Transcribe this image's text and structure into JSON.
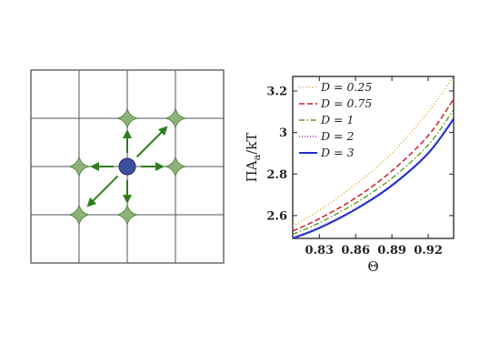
{
  "lattice_panel": {
    "grid_rows": 4,
    "grid_cols": 4,
    "grid_color": "#555555",
    "site_color": "#8fb27a",
    "site_edge_color": "#5d8a4a",
    "particle_color": "#3a4f9e",
    "arrow_color": "#2e7d1e"
  },
  "chart_data": {
    "type": "line",
    "xlabel": "Θ",
    "ylabel": "ΠA",
    "ylabel_subscript": "a",
    "ylabel_suffix": "/kT",
    "xlim": [
      0.808,
      0.941
    ],
    "ylim": [
      2.49,
      3.27
    ],
    "xticks": [
      0.83,
      0.86,
      0.89,
      0.92
    ],
    "yticks": [
      2.6,
      2.8,
      3,
      3.2
    ],
    "xtick_labels": [
      "0.83",
      "0.86",
      "0.89",
      "0.92"
    ],
    "ytick_labels": [
      "2.6",
      "2.8",
      "3",
      "3.2"
    ],
    "legend_position": "top-left",
    "series": [
      {
        "name": "D = 0.25",
        "color": "#d4a017",
        "dash": "1,2.5",
        "width": 1.4,
        "x": [
          0.808,
          0.83,
          0.86,
          0.89,
          0.92,
          0.941
        ],
        "y": [
          2.55,
          2.625,
          2.75,
          2.9,
          3.1,
          3.27
        ]
      },
      {
        "name": "D = 0.75",
        "color": "#cc2222",
        "dash": "6,3",
        "width": 1.5,
        "x": [
          0.808,
          0.83,
          0.86,
          0.89,
          0.92,
          0.941
        ],
        "y": [
          2.525,
          2.585,
          2.685,
          2.815,
          2.985,
          3.16
        ]
      },
      {
        "name": "D = 1",
        "color": "#5a9a28",
        "dash": "6,2.5,1.5,2.5",
        "width": 1.4,
        "x": [
          0.808,
          0.83,
          0.86,
          0.89,
          0.92,
          0.941
        ],
        "y": [
          2.51,
          2.565,
          2.66,
          2.78,
          2.94,
          3.11
        ]
      },
      {
        "name": "D = 2",
        "color": "#bb22bb",
        "dash": "1,2",
        "width": 1.4,
        "x": [
          0.808,
          0.83,
          0.86,
          0.89,
          0.92,
          0.941
        ],
        "y": [
          2.495,
          2.545,
          2.635,
          2.75,
          2.905,
          3.07
        ]
      },
      {
        "name": "D = 3",
        "color": "#1a2fd0",
        "dash": "",
        "width": 2,
        "x": [
          0.808,
          0.83,
          0.86,
          0.89,
          0.92,
          0.941
        ],
        "y": [
          2.49,
          2.54,
          2.63,
          2.745,
          2.9,
          3.065
        ]
      }
    ]
  }
}
